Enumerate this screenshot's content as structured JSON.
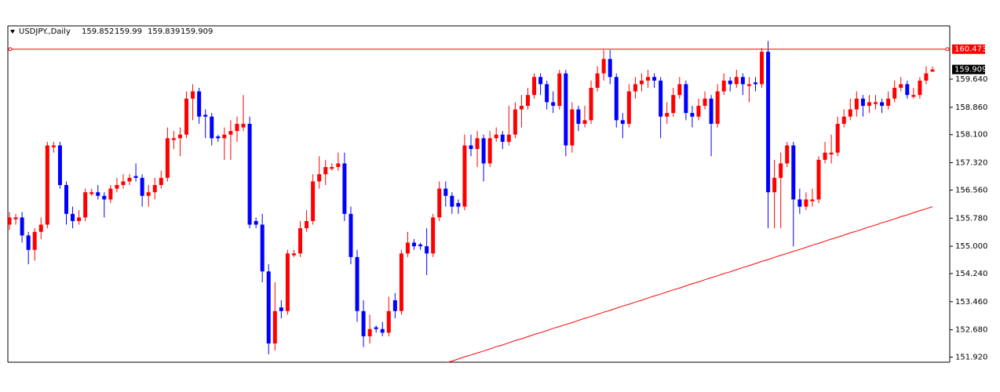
{
  "chart_data": {
    "type": "candlestick",
    "symbol": "USDJPY.,Daily",
    "up_color": "#ff0000",
    "down_color": "#0000ff",
    "ylim": [
      151.78,
      161.12
    ],
    "yticks": [
      {
        "value": 151.92,
        "label": "151.920"
      },
      {
        "value": 152.68,
        "label": "152.680"
      },
      {
        "value": 153.46,
        "label": "153.460"
      },
      {
        "value": 154.24,
        "label": "154.240"
      },
      {
        "value": 155.0,
        "label": "155.000"
      },
      {
        "value": 155.78,
        "label": "155.780"
      },
      {
        "value": 156.56,
        "label": "156.560"
      },
      {
        "value": 157.32,
        "label": "157.320"
      },
      {
        "value": 158.1,
        "label": "158.100"
      },
      {
        "value": 158.86,
        "label": "158.860"
      },
      {
        "value": 159.64,
        "label": "159.640"
      }
    ],
    "hline": {
      "value": 160.473,
      "label": "160.473",
      "color": "#ff0000"
    },
    "ma": {
      "color": "#ff0000",
      "values": [
        null,
        null,
        null,
        null,
        null,
        null,
        null,
        null,
        null,
        null,
        null,
        null,
        null,
        null,
        null,
        null,
        null,
        null,
        null,
        null,
        null,
        null,
        null,
        null,
        null,
        null,
        null,
        null,
        null,
        null,
        null,
        null,
        null,
        null,
        null,
        null,
        null,
        null,
        null,
        null,
        null,
        null,
        null,
        null,
        null,
        null,
        null,
        null,
        null,
        null,
        null,
        null,
        null,
        null,
        null,
        null,
        null,
        null,
        null,
        null,
        null,
        null,
        null,
        null,
        null,
        null,
        null,
        null,
        151.7,
        151.76,
        151.81,
        151.87,
        151.93,
        151.98,
        152.04,
        152.09,
        152.15,
        152.21,
        152.26,
        152.32,
        152.38,
        152.43,
        152.49,
        152.55,
        152.6,
        152.66,
        152.72,
        152.77,
        152.83,
        152.88,
        152.94,
        153.0,
        153.05,
        153.11,
        153.17,
        153.22,
        153.28,
        153.34,
        153.39,
        153.45,
        153.5,
        153.56,
        153.62,
        153.67,
        153.73,
        153.79,
        153.84,
        153.9,
        153.96,
        154.01,
        154.07,
        154.13,
        154.18,
        154.24,
        154.29,
        154.35,
        154.41,
        154.46,
        154.52,
        154.58,
        154.63,
        154.69,
        154.75,
        154.8,
        154.86,
        154.91,
        154.97,
        155.03,
        155.08,
        155.14,
        155.2,
        155.25,
        155.31,
        155.37,
        155.42,
        155.48,
        155.54,
        155.59,
        155.65,
        155.7,
        155.76,
        155.82,
        155.87,
        155.93,
        155.99,
        156.04,
        156.1
      ]
    },
    "ohlc": [
      [
        155.6,
        155.95,
        155.45,
        155.8
      ],
      [
        155.75,
        155.9,
        155.6,
        155.8
      ],
      [
        155.8,
        155.95,
        155.1,
        155.3
      ],
      [
        155.3,
        155.4,
        154.5,
        154.9
      ],
      [
        154.9,
        155.5,
        154.6,
        155.4
      ],
      [
        155.4,
        155.8,
        155.2,
        155.6
      ],
      [
        155.6,
        157.9,
        155.5,
        157.8
      ],
      [
        157.75,
        157.9,
        157.6,
        157.8
      ],
      [
        157.8,
        157.9,
        156.6,
        156.7
      ],
      [
        156.7,
        156.8,
        155.6,
        155.9
      ],
      [
        155.9,
        156.1,
        155.5,
        155.7
      ],
      [
        155.7,
        156.0,
        155.6,
        155.8
      ],
      [
        155.8,
        156.6,
        155.7,
        156.5
      ],
      [
        156.45,
        156.6,
        156.4,
        156.5
      ],
      [
        156.5,
        156.7,
        156.3,
        156.4
      ],
      [
        156.4,
        156.5,
        155.8,
        156.3
      ],
      [
        156.3,
        156.7,
        156.2,
        156.6
      ],
      [
        156.6,
        156.9,
        156.5,
        156.7
      ],
      [
        156.7,
        157.0,
        156.6,
        156.8
      ],
      [
        156.8,
        157.0,
        156.7,
        156.9
      ],
      [
        156.95,
        157.3,
        156.8,
        156.9
      ],
      [
        156.9,
        157.0,
        156.1,
        156.4
      ],
      [
        156.4,
        156.7,
        156.1,
        156.5
      ],
      [
        156.5,
        156.9,
        156.3,
        156.7
      ],
      [
        156.7,
        157.1,
        156.6,
        156.9
      ],
      [
        156.9,
        158.3,
        156.8,
        158.0
      ],
      [
        157.95,
        158.2,
        157.7,
        158.0
      ],
      [
        158.0,
        158.3,
        157.5,
        158.1
      ],
      [
        158.1,
        159.3,
        158.0,
        159.1
      ],
      [
        159.1,
        159.5,
        158.5,
        159.3
      ],
      [
        159.3,
        159.4,
        158.4,
        158.6
      ],
      [
        158.65,
        158.8,
        158.0,
        158.6
      ],
      [
        158.6,
        158.7,
        157.8,
        158.0
      ],
      [
        158.05,
        158.1,
        157.9,
        158.0
      ],
      [
        158.0,
        158.3,
        157.4,
        158.1
      ],
      [
        158.1,
        158.5,
        157.4,
        158.2
      ],
      [
        158.2,
        158.6,
        157.9,
        158.4
      ],
      [
        158.3,
        159.2,
        158.2,
        158.4
      ],
      [
        158.4,
        158.6,
        155.5,
        155.6
      ],
      [
        155.7,
        155.8,
        155.5,
        155.6
      ],
      [
        155.6,
        155.9,
        154.0,
        154.3
      ],
      [
        154.3,
        154.5,
        152.0,
        152.3
      ],
      [
        152.3,
        154.0,
        152.1,
        153.2
      ],
      [
        153.3,
        153.5,
        153.0,
        153.2
      ],
      [
        153.2,
        154.9,
        153.1,
        154.8
      ],
      [
        154.75,
        154.9,
        154.7,
        154.8
      ],
      [
        154.8,
        155.7,
        154.7,
        155.5
      ],
      [
        155.5,
        156.0,
        155.4,
        155.7
      ],
      [
        155.7,
        157.0,
        155.6,
        156.8
      ],
      [
        156.8,
        157.5,
        156.6,
        157.0
      ],
      [
        157.0,
        157.4,
        156.7,
        157.2
      ],
      [
        157.15,
        157.3,
        157.1,
        157.2
      ],
      [
        157.2,
        157.6,
        157.1,
        157.3
      ],
      [
        157.3,
        157.6,
        155.7,
        155.9
      ],
      [
        155.9,
        156.1,
        154.5,
        154.7
      ],
      [
        154.7,
        154.9,
        152.9,
        153.2
      ],
      [
        153.2,
        153.5,
        152.2,
        152.5
      ],
      [
        152.5,
        153.1,
        152.3,
        152.7
      ],
      [
        152.75,
        152.8,
        152.6,
        152.7
      ],
      [
        152.7,
        152.9,
        152.5,
        152.6
      ],
      [
        152.6,
        153.6,
        152.5,
        153.2
      ],
      [
        153.5,
        153.7,
        153.0,
        153.2
      ],
      [
        153.2,
        154.9,
        153.1,
        154.8
      ],
      [
        154.8,
        155.4,
        154.7,
        155.1
      ],
      [
        155.1,
        155.2,
        154.9,
        155.0
      ],
      [
        155.05,
        155.1,
        154.9,
        155.0
      ],
      [
        155.0,
        155.5,
        154.2,
        154.8
      ],
      [
        154.8,
        155.9,
        154.7,
        155.8
      ],
      [
        155.8,
        156.8,
        155.7,
        156.6
      ],
      [
        156.6,
        156.8,
        156.1,
        156.4
      ],
      [
        156.4,
        156.5,
        155.9,
        156.1
      ],
      [
        156.2,
        156.3,
        155.9,
        156.1
      ],
      [
        156.1,
        158.1,
        156.0,
        157.8
      ],
      [
        157.8,
        158.1,
        157.5,
        157.7
      ],
      [
        157.7,
        158.2,
        157.2,
        158.0
      ],
      [
        158.0,
        158.1,
        156.8,
        157.3
      ],
      [
        157.3,
        158.2,
        157.2,
        158.0
      ],
      [
        158.0,
        158.3,
        157.9,
        158.1
      ],
      [
        158.1,
        158.2,
        157.7,
        157.9
      ],
      [
        157.9,
        158.9,
        157.8,
        158.1
      ],
      [
        158.1,
        159.0,
        158.0,
        158.8
      ],
      [
        158.8,
        159.2,
        158.3,
        158.9
      ],
      [
        158.9,
        159.4,
        158.8,
        159.2
      ],
      [
        159.2,
        159.8,
        159.1,
        159.7
      ],
      [
        159.7,
        159.8,
        159.2,
        159.5
      ],
      [
        159.5,
        159.6,
        158.8,
        159.0
      ],
      [
        159.0,
        159.3,
        158.7,
        158.9
      ],
      [
        158.9,
        159.9,
        158.8,
        159.8
      ],
      [
        159.8,
        159.9,
        157.5,
        157.8
      ],
      [
        157.8,
        159.0,
        157.6,
        158.8
      ],
      [
        158.8,
        158.9,
        158.2,
        158.4
      ],
      [
        158.4,
        158.9,
        158.3,
        158.5
      ],
      [
        158.5,
        159.6,
        158.4,
        159.4
      ],
      [
        159.4,
        160.0,
        159.3,
        159.8
      ],
      [
        159.8,
        160.45,
        159.6,
        160.2
      ],
      [
        160.2,
        160.45,
        159.5,
        159.7
      ],
      [
        159.7,
        159.8,
        158.3,
        158.5
      ],
      [
        158.5,
        158.7,
        158.0,
        158.4
      ],
      [
        158.4,
        159.5,
        158.3,
        159.3
      ],
      [
        159.3,
        159.7,
        159.1,
        159.5
      ],
      [
        159.5,
        159.8,
        159.3,
        159.6
      ],
      [
        159.6,
        159.9,
        159.4,
        159.7
      ],
      [
        159.7,
        159.8,
        159.4,
        159.6
      ],
      [
        159.6,
        159.7,
        158.0,
        158.6
      ],
      [
        158.6,
        159.0,
        158.4,
        158.7
      ],
      [
        158.7,
        159.4,
        158.6,
        159.2
      ],
      [
        159.2,
        159.7,
        159.1,
        159.5
      ],
      [
        159.5,
        159.6,
        158.5,
        158.7
      ],
      [
        158.7,
        158.9,
        158.3,
        158.6
      ],
      [
        158.6,
        159.1,
        158.5,
        158.9
      ],
      [
        158.9,
        159.3,
        158.8,
        159.1
      ],
      [
        159.1,
        159.2,
        157.5,
        158.4
      ],
      [
        158.4,
        159.5,
        158.3,
        159.3
      ],
      [
        159.3,
        159.8,
        159.2,
        159.6
      ],
      [
        159.6,
        159.7,
        159.3,
        159.5
      ],
      [
        159.5,
        159.9,
        159.4,
        159.7
      ],
      [
        159.7,
        159.8,
        159.2,
        159.5
      ],
      [
        159.45,
        159.7,
        159.0,
        159.5
      ],
      [
        159.55,
        159.7,
        159.3,
        159.5
      ],
      [
        159.5,
        160.5,
        159.4,
        160.4
      ],
      [
        160.4,
        160.7,
        155.5,
        156.5
      ],
      [
        156.5,
        157.4,
        155.5,
        156.9
      ],
      [
        156.9,
        157.6,
        155.5,
        157.3
      ],
      [
        157.3,
        157.9,
        157.2,
        157.8
      ],
      [
        157.8,
        157.9,
        155.0,
        156.3
      ],
      [
        156.3,
        156.6,
        155.9,
        156.1
      ],
      [
        156.1,
        156.5,
        156.0,
        156.3
      ],
      [
        156.25,
        156.6,
        156.1,
        156.3
      ],
      [
        156.3,
        157.5,
        156.2,
        157.4
      ],
      [
        157.4,
        157.9,
        157.3,
        157.6
      ],
      [
        157.55,
        158.1,
        157.3,
        157.6
      ],
      [
        157.6,
        158.6,
        157.5,
        158.4
      ],
      [
        158.4,
        158.8,
        158.3,
        158.6
      ],
      [
        158.6,
        159.1,
        158.5,
        158.8
      ],
      [
        158.8,
        159.3,
        158.6,
        159.1
      ],
      [
        159.1,
        159.2,
        158.6,
        158.9
      ],
      [
        158.9,
        159.2,
        158.7,
        159.0
      ],
      [
        158.95,
        159.2,
        158.8,
        159.0
      ],
      [
        159.0,
        159.1,
        158.7,
        158.9
      ],
      [
        158.9,
        159.3,
        158.8,
        159.1
      ],
      [
        159.1,
        159.6,
        159.0,
        159.4
      ],
      [
        159.4,
        159.7,
        159.3,
        159.5
      ],
      [
        159.5,
        159.6,
        159.1,
        159.2
      ],
      [
        159.15,
        159.4,
        159.1,
        159.2
      ],
      [
        159.2,
        159.7,
        159.1,
        159.6
      ],
      [
        159.6,
        160.0,
        159.5,
        159.8
      ],
      [
        159.852,
        159.99,
        159.839,
        159.909
      ]
    ]
  }
}
